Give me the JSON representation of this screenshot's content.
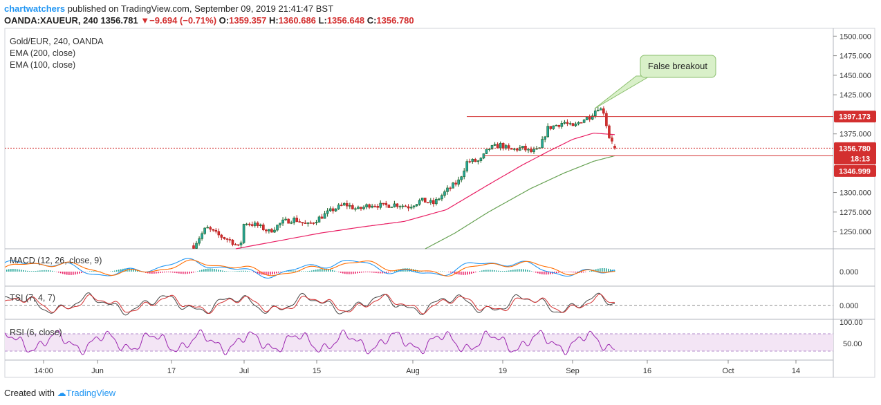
{
  "header": {
    "user": "chartwatchers",
    "published": "published on TradingView.com, September 09, 2019 21:41:47 BST",
    "symbol": "OANDA:XAUEUR, 240",
    "last": "1356.781",
    "change": "−9.694 (−0.71%)",
    "o_label": "O:",
    "o_value": "1359.357",
    "h_label": "H:",
    "h_value": "1360.686",
    "l_label": "L:",
    "l_value": "1356.648",
    "c_label": "C:",
    "c_value": "1356.780"
  },
  "legend": {
    "title": "Gold/EUR, 240, OANDA",
    "ema200": "EMA (200, close)",
    "ema100": "EMA (100, close)"
  },
  "annotation": {
    "text": "False breakout"
  },
  "price_labels": {
    "resistance": "1397.173",
    "current": "1356.780",
    "countdown": "18:13",
    "support": "1346.999"
  },
  "panes": {
    "macd": {
      "label": "MACD (12, 26, close, 9)",
      "tick": "0.000"
    },
    "tsi": {
      "label": "TSI (7, 4, 7)",
      "tick": "0.000"
    },
    "rsi": {
      "label": "RSI (6, close)",
      "tick_top": "100.00",
      "tick_mid": "50.00"
    }
  },
  "footer": {
    "created": "Created with",
    "brand": "TradingView"
  },
  "colors": {
    "up": "#26a69a",
    "down": "#d32f2f",
    "ema100": "#e91e63",
    "ema200": "#66a152",
    "level": "#d32f2f",
    "rsi": "#9c27b0",
    "rsi_band": "#f3e5f5",
    "macd": "#2196f3",
    "signal": "#ff6d00"
  },
  "chart_data": {
    "type": "candlestick",
    "symbol": "OANDA:XAUEUR",
    "interval": "240",
    "y_ticks": [
      "1500.000",
      "1475.000",
      "1450.000",
      "1425.000",
      "1375.000",
      "1300.000",
      "1275.000",
      "1250.000"
    ],
    "ylim": [
      1228,
      1510
    ],
    "x_ticks": [
      "14:00",
      "Jun",
      "17",
      "Jul",
      "15",
      "Aug",
      "19",
      "Sep",
      "16",
      "Oct",
      "14"
    ],
    "levels": [
      1397.173,
      1346.999
    ],
    "current_price": 1356.78,
    "last_ohlc": {
      "open": 1359.357,
      "high": 1360.686,
      "low": 1356.648,
      "close": 1356.78
    },
    "close_path": [
      [
        0.0,
        1232
      ],
      [
        0.03,
        1255
      ],
      [
        0.06,
        1245
      ],
      [
        0.09,
        1238
      ],
      [
        0.11,
        1228
      ],
      [
        0.12,
        1262
      ],
      [
        0.15,
        1258
      ],
      [
        0.18,
        1250
      ],
      [
        0.21,
        1262
      ],
      [
        0.24,
        1266
      ],
      [
        0.27,
        1258
      ],
      [
        0.3,
        1268
      ],
      [
        0.33,
        1278
      ],
      [
        0.36,
        1285
      ],
      [
        0.39,
        1278
      ],
      [
        0.42,
        1285
      ],
      [
        0.45,
        1283
      ],
      [
        0.48,
        1285
      ],
      [
        0.51,
        1282
      ],
      [
        0.54,
        1290
      ],
      [
        0.57,
        1286
      ],
      [
        0.6,
        1302
      ],
      [
        0.63,
        1315
      ],
      [
        0.65,
        1340
      ],
      [
        0.68,
        1340
      ],
      [
        0.7,
        1356
      ],
      [
        0.73,
        1361
      ],
      [
        0.75,
        1354
      ],
      [
        0.78,
        1357
      ],
      [
        0.8,
        1352
      ],
      [
        0.82,
        1354
      ],
      [
        0.84,
        1382
      ],
      [
        0.86,
        1386
      ],
      [
        0.88,
        1390
      ],
      [
        0.9,
        1383
      ],
      [
        0.92,
        1392
      ],
      [
        0.94,
        1397
      ],
      [
        0.96,
        1409
      ],
      [
        0.975,
        1403
      ],
      [
        0.985,
        1372
      ],
      [
        0.993,
        1368
      ],
      [
        1.0,
        1356.78
      ]
    ],
    "ema100": [
      [
        0.1,
        1228
      ],
      [
        0.2,
        1238
      ],
      [
        0.3,
        1248
      ],
      [
        0.4,
        1256
      ],
      [
        0.5,
        1263
      ],
      [
        0.6,
        1278
      ],
      [
        0.7,
        1310
      ],
      [
        0.78,
        1335
      ],
      [
        0.84,
        1352
      ],
      [
        0.9,
        1368
      ],
      [
        0.95,
        1376
      ],
      [
        1.0,
        1374
      ]
    ],
    "ema200": [
      [
        0.55,
        1228
      ],
      [
        0.62,
        1248
      ],
      [
        0.7,
        1275
      ],
      [
        0.8,
        1305
      ],
      [
        0.88,
        1325
      ],
      [
        0.95,
        1340
      ],
      [
        1.0,
        1347
      ]
    ],
    "indicators": {
      "macd_zero": 0.0,
      "tsi_zero": 0.0,
      "rsi_levels": [
        100.0,
        50.0
      ]
    }
  }
}
